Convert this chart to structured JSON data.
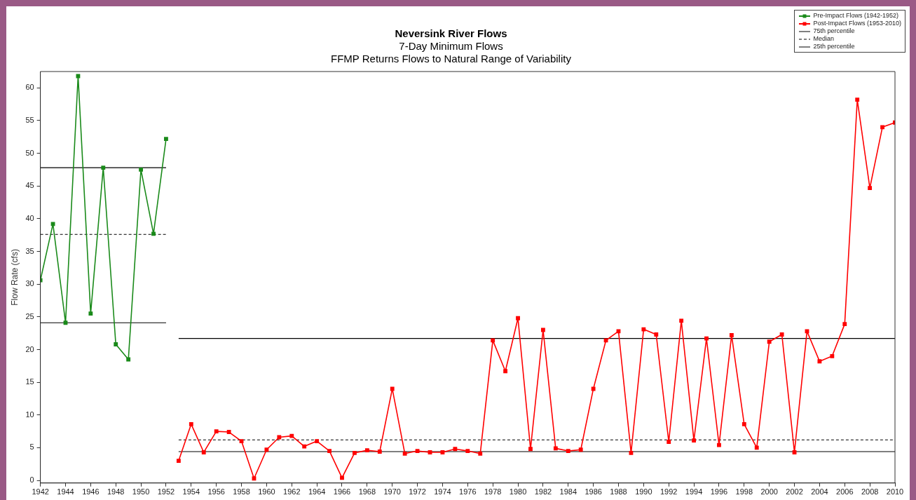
{
  "chart_data": {
    "type": "line",
    "title": "Neversink River Flows",
    "subtitle": "7-Day Minimum Flows\nFFMP Returns Flows to Natural Range of Variability",
    "ylabel": "Flow Rate (cfs)",
    "xlim": [
      1942,
      2010
    ],
    "xticks": [
      1942,
      1944,
      1946,
      1948,
      1950,
      1952,
      1954,
      1956,
      1958,
      1960,
      1962,
      1964,
      1966,
      1968,
      1970,
      1972,
      1974,
      1976,
      1978,
      1980,
      1982,
      1984,
      1986,
      1988,
      1990,
      1992,
      1994,
      1996,
      1998,
      2000,
      2002,
      2004,
      2006,
      2008,
      2010
    ],
    "ylim": [
      -0.4,
      62.5
    ],
    "yticks": [
      0,
      5,
      10,
      15,
      20,
      25,
      30,
      35,
      40,
      45,
      50,
      55,
      60
    ],
    "grid": false,
    "legend": "top right",
    "series": [
      {
        "name": "Pre-Impact Flows (1942-1952)",
        "color": "#1a8a1a",
        "marker": "square",
        "x": [
          1942,
          1943,
          1944,
          1945,
          1946,
          1947,
          1948,
          1949,
          1950,
          1951,
          1952
        ],
        "values": [
          30.6,
          39.2,
          24.1,
          61.8,
          25.5,
          47.8,
          20.8,
          18.5,
          47.5,
          37.7,
          52.2
        ]
      },
      {
        "name": "Post-Impact Flows (1953-2010)",
        "color": "#ff0000",
        "marker": "square",
        "x": [
          1953,
          1954,
          1955,
          1956,
          1957,
          1958,
          1959,
          1960,
          1961,
          1962,
          1963,
          1964,
          1965,
          1966,
          1967,
          1968,
          1969,
          1970,
          1971,
          1972,
          1973,
          1974,
          1975,
          1976,
          1977,
          1978,
          1979,
          1980,
          1981,
          1982,
          1983,
          1984,
          1985,
          1986,
          1987,
          1988,
          1989,
          1990,
          1991,
          1992,
          1993,
          1994,
          1995,
          1996,
          1997,
          1998,
          1999,
          2000,
          2001,
          2002,
          2003,
          2004,
          2005,
          2006,
          2007,
          2008,
          2009,
          2010
        ],
        "values": [
          3.0,
          8.6,
          4.3,
          7.5,
          7.4,
          6.0,
          0.3,
          4.7,
          6.6,
          6.8,
          5.2,
          6.0,
          4.5,
          0.4,
          4.2,
          4.6,
          4.4,
          14.0,
          4.1,
          4.5,
          4.3,
          4.3,
          4.8,
          4.5,
          4.1,
          21.4,
          16.7,
          24.8,
          4.8,
          23.0,
          4.9,
          4.5,
          4.7,
          14.0,
          21.4,
          22.8,
          4.2,
          23.1,
          22.3,
          5.9,
          24.4,
          6.1,
          21.7,
          5.4,
          22.2,
          8.6,
          5.0,
          21.2,
          22.3,
          4.3,
          22.8,
          18.2,
          19.0,
          23.9,
          58.2,
          44.7,
          54.0,
          54.7
        ]
      },
      {
        "name": "75th percentile",
        "color": "#000000",
        "marker": "none",
        "line_style": "solid",
        "x": [
          1942,
          1952,
          1952.5,
          1953,
          2010
        ],
        "values": [
          47.8,
          47.8,
          null,
          21.7,
          21.7
        ]
      },
      {
        "name": "Median",
        "color": "#000000",
        "marker": "none",
        "line_style": "dashed",
        "x": [
          1942,
          1952,
          1952.5,
          1953,
          2010
        ],
        "values": [
          37.6,
          37.6,
          null,
          6.2,
          6.2
        ]
      },
      {
        "name": "25th percentile",
        "color": "#000000",
        "marker": "none",
        "line_style": "solid",
        "x": [
          1942,
          1952,
          1952.5,
          1953,
          2010
        ],
        "values": [
          24.1,
          24.1,
          null,
          4.4,
          4.4
        ]
      }
    ]
  }
}
